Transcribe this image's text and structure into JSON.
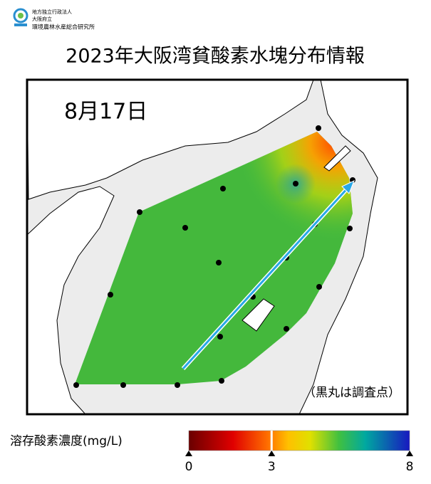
{
  "header": {
    "org": [
      "地方独立行政法人",
      "大阪府立",
      "環境農林水産総合研究所"
    ],
    "title": "2023年大阪湾貧酸素水塊分布情報"
  },
  "map": {
    "date": "8月17日",
    "note": "（黒丸は調査点）"
  },
  "colorbar": {
    "label": "溶存酸素濃度(mg/L)",
    "lim": [
      0,
      8
    ],
    "ticks": [
      0,
      3,
      8
    ]
  }
}
